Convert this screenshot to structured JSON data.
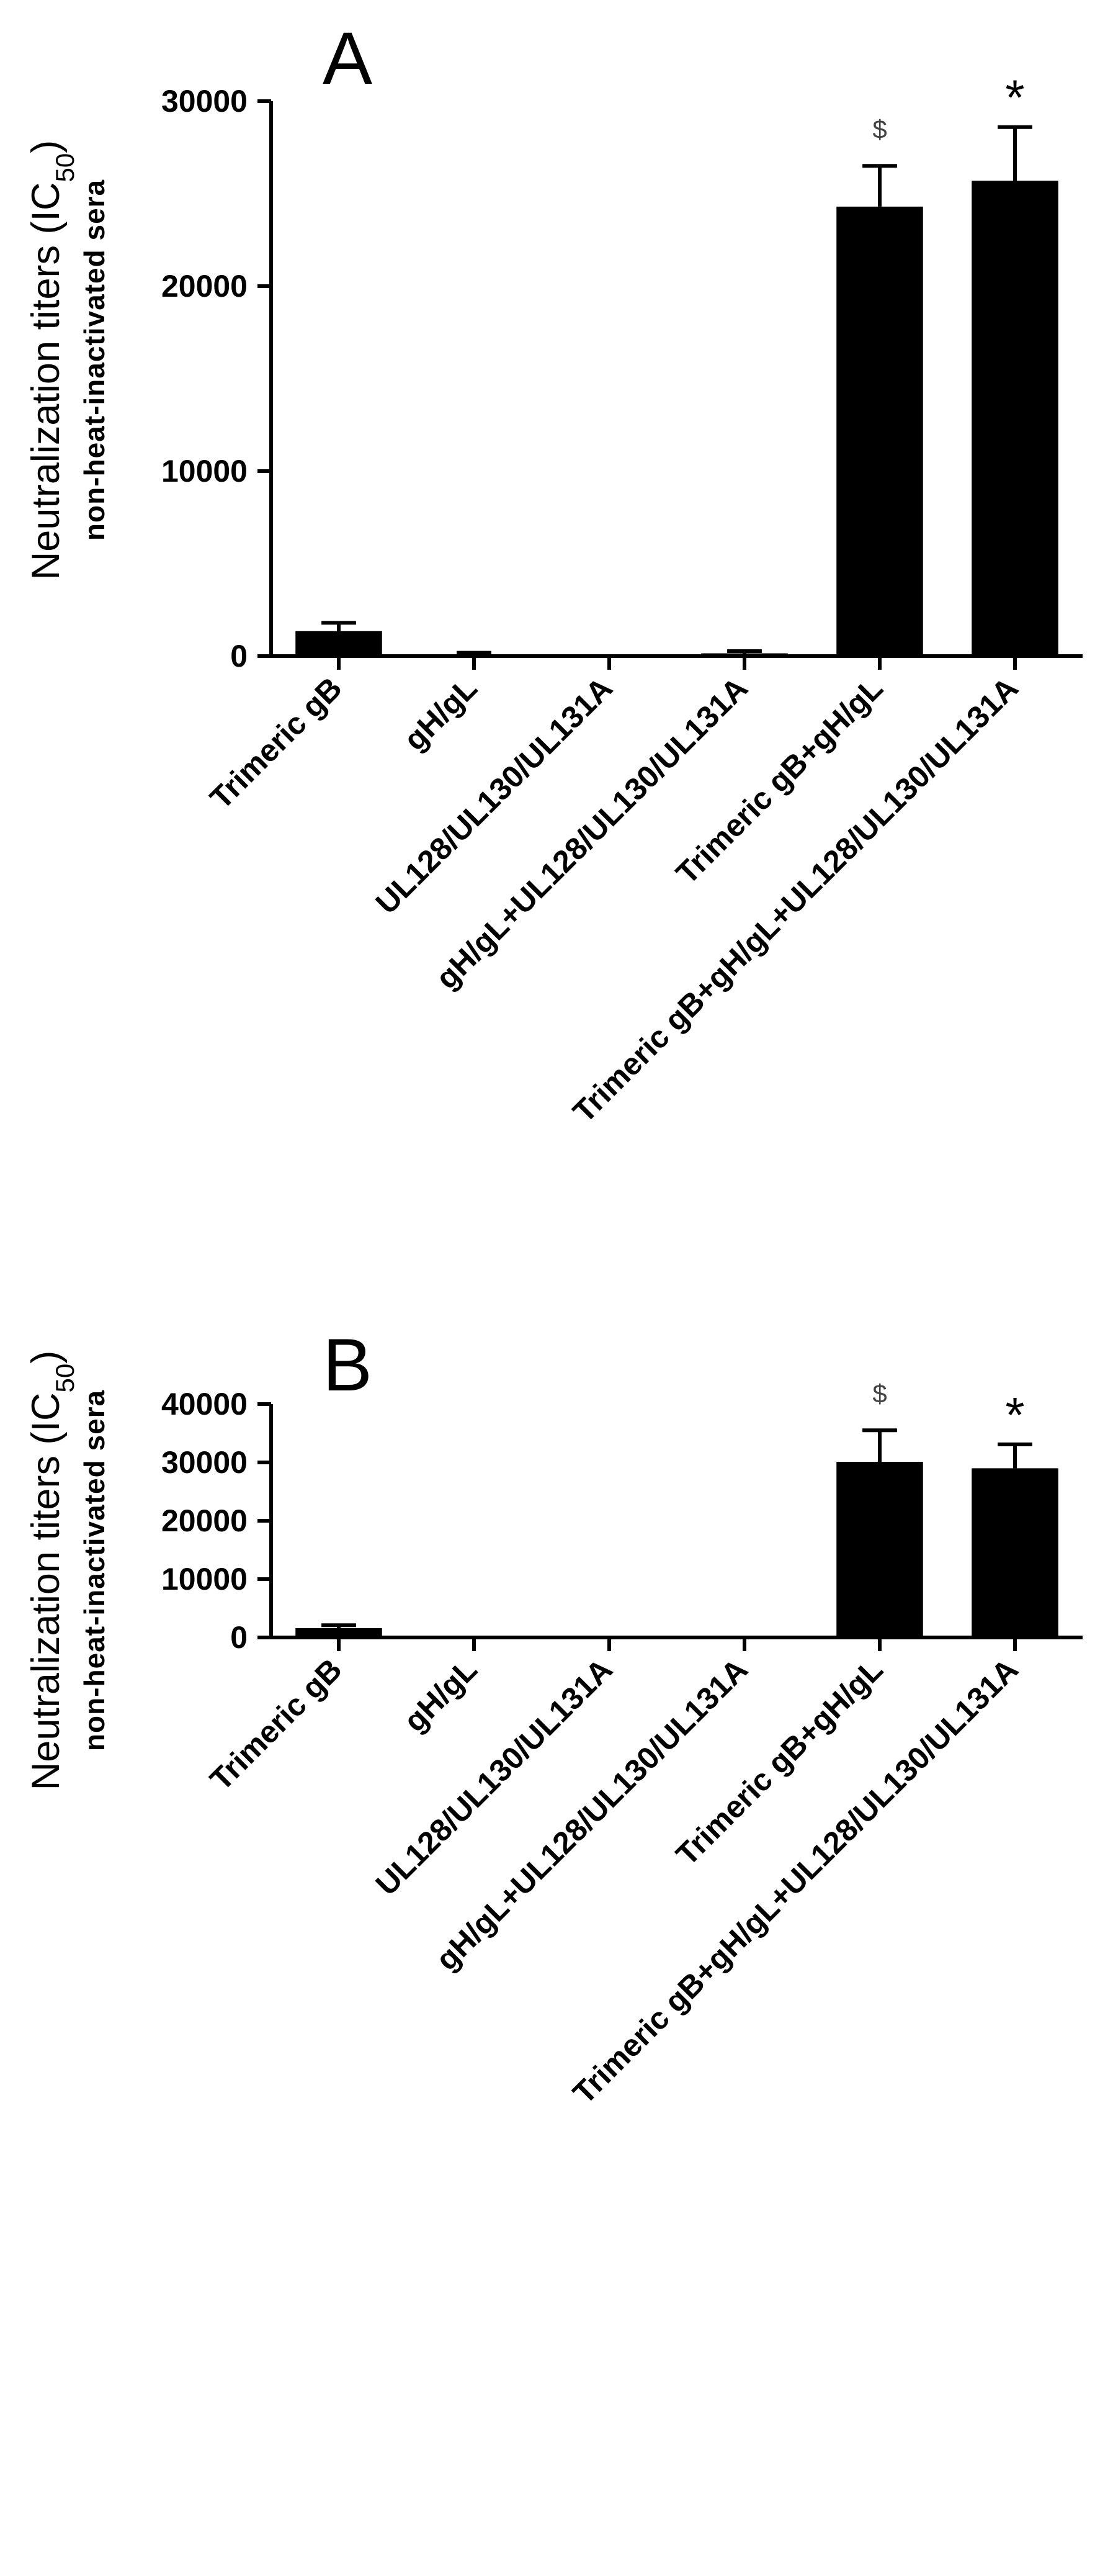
{
  "chart_data": [
    {
      "type": "bar",
      "panel_label": "A",
      "ylabel": "Neutralization titers (IC",
      "ylabel_subscript": "50",
      "ylabel_close": ")",
      "ylabel_sub": "non-heat-inactivated sera",
      "ylim": [
        0,
        30000
      ],
      "yticks": [
        0,
        10000,
        20000,
        30000
      ],
      "ytick_labels": [
        "0",
        "10000",
        "20000",
        "30000"
      ],
      "grid": false,
      "categories": [
        "Trimeric gB",
        "gH/gL",
        "UL128/UL130/UL131A",
        "gH/gL+UL128/UL130/UL131A",
        "Trimeric gB+gH/gL",
        "Trimeric gB+gH/gL+UL128/UL130/UL131A"
      ],
      "values": [
        1350,
        100,
        20,
        150,
        24300,
        25700
      ],
      "errors": [
        450,
        80,
        0,
        120,
        2200,
        2900
      ],
      "annotations": [
        "",
        "",
        "",
        "",
        "$",
        "*"
      ],
      "bar_color": "#000000"
    },
    {
      "type": "bar",
      "panel_label": "B",
      "ylabel": "Neutralization titers (IC",
      "ylabel_subscript": "50",
      "ylabel_close": ")",
      "ylabel_sub": "non-heat-inactivated sera",
      "ylim": [
        0,
        40000
      ],
      "yticks": [
        0,
        10000,
        20000,
        30000,
        40000
      ],
      "ytick_labels": [
        "0",
        "10000",
        "20000",
        "30000",
        "40000"
      ],
      "grid": false,
      "categories": [
        "Trimeric gB",
        "gH/gL",
        "UL128/UL130/UL131A",
        "gH/gL+UL128/UL130/UL131A",
        "Trimeric gB+gH/gL",
        "Trimeric gB+gH/gL+UL128/UL130/UL131A"
      ],
      "values": [
        1600,
        0,
        0,
        0,
        30100,
        29000
      ],
      "errors": [
        500,
        0,
        0,
        0,
        5400,
        4100
      ],
      "annotations": [
        "",
        "",
        "",
        "",
        "$",
        "*"
      ],
      "bar_color": "#000000"
    }
  ]
}
